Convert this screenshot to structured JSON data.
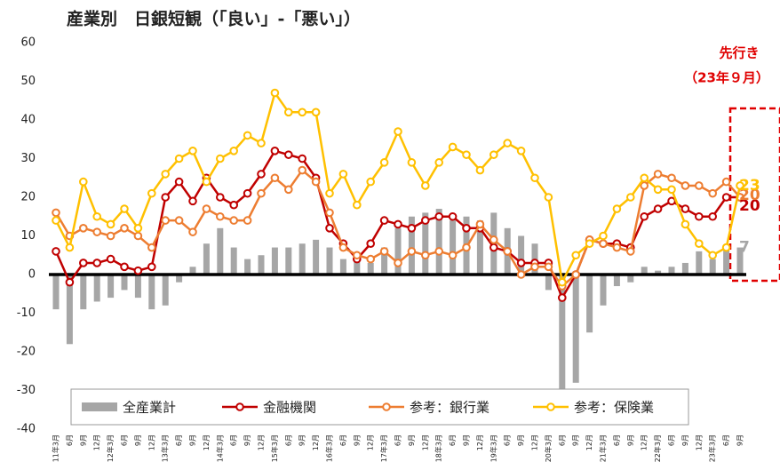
{
  "chart_data": {
    "type": "bar_line",
    "title": "産業別　日銀短観（「良い」-「悪い」）",
    "annotation": [
      "先行き",
      "（23年９月）"
    ],
    "categories": [
      "11年3月",
      "6月",
      "9月",
      "12月",
      "12年3月",
      "6月",
      "9月",
      "12月",
      "13年3月",
      "6月",
      "9月",
      "12月",
      "14年3月",
      "6月",
      "9月",
      "12月",
      "15年3月",
      "6月",
      "9月",
      "12月",
      "16年3月",
      "6月",
      "9月",
      "12月",
      "17年3月",
      "6月",
      "9月",
      "12月",
      "18年3月",
      "6月",
      "9月",
      "12月",
      "19年3月",
      "6月",
      "9月",
      "12月",
      "20年3月",
      "6月",
      "9月",
      "12月",
      "21年3月",
      "6月",
      "9月",
      "12月",
      "22年3月",
      "6月",
      "9月",
      "12月",
      "23年3月",
      "6月",
      "9月"
    ],
    "series": [
      {
        "name": "全産業計",
        "kind": "bar",
        "color": "#a6a6a6",
        "values": [
          -9,
          -18,
          -9,
          -7,
          -6,
          -4,
          -6,
          -9,
          -8,
          -2,
          2,
          8,
          12,
          7,
          4,
          5,
          7,
          7,
          8,
          9,
          7,
          4,
          5,
          3,
          7,
          12,
          15,
          16,
          17,
          14,
          15,
          14,
          16,
          12,
          10,
          8,
          -4,
          -31,
          -28,
          -15,
          -8,
          -3,
          -2,
          2,
          1,
          2,
          3,
          6,
          4,
          7,
          7
        ]
      },
      {
        "name": "金融機関",
        "kind": "line",
        "color": "#c00000",
        "values": [
          6,
          -2,
          3,
          3,
          4,
          2,
          1,
          2,
          20,
          24,
          19,
          25,
          20,
          18,
          21,
          26,
          32,
          31,
          30,
          25,
          12,
          8,
          4,
          8,
          14,
          13,
          12,
          14,
          15,
          15,
          12,
          12,
          7,
          6,
          3,
          3,
          3,
          -6,
          0,
          9,
          8,
          8,
          7,
          15,
          17,
          19,
          17,
          15,
          15,
          20,
          20
        ]
      },
      {
        "name": "参考：銀行業",
        "kind": "line",
        "color": "#ed7d31",
        "values": [
          16,
          10,
          12,
          11,
          10,
          12,
          10,
          7,
          14,
          14,
          11,
          17,
          15,
          14,
          14,
          21,
          25,
          22,
          27,
          24,
          16,
          7,
          5,
          4,
          6,
          3,
          6,
          5,
          6,
          5,
          7,
          13,
          9,
          6,
          0,
          2,
          2,
          -3,
          0,
          9,
          8,
          7,
          6,
          23,
          26,
          25,
          23,
          23,
          21,
          24,
          20
        ]
      },
      {
        "name": "参考：保険業",
        "kind": "line",
        "color": "#ffc000",
        "values": [
          14,
          7,
          24,
          15,
          13,
          17,
          12,
          21,
          26,
          30,
          32,
          24,
          30,
          32,
          36,
          34,
          47,
          42,
          42,
          42,
          21,
          26,
          18,
          24,
          29,
          37,
          29,
          23,
          29,
          33,
          31,
          27,
          31,
          34,
          32,
          25,
          20,
          -2,
          5,
          8,
          10,
          17,
          20,
          25,
          22,
          22,
          13,
          8,
          5,
          7,
          23
        ]
      }
    ],
    "ylim": [
      -40,
      60
    ],
    "yticks": [
      -40,
      -30,
      -20,
      -10,
      0,
      10,
      20,
      30,
      40,
      50,
      60
    ],
    "legend": "lower center"
  }
}
